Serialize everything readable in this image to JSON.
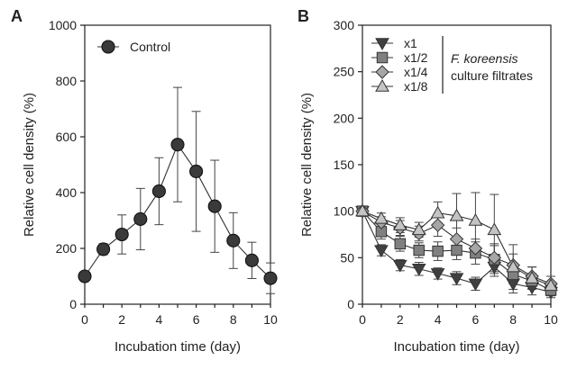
{
  "chart_data": [
    {
      "panel": "A",
      "type": "line",
      "xlabel": "Incubation time (day)",
      "ylabel": "Relative cell density (%)",
      "xlim": [
        0,
        10
      ],
      "ylim": [
        0,
        1000
      ],
      "xticks": [
        0,
        2,
        4,
        6,
        8,
        10
      ],
      "yticks": [
        0,
        200,
        400,
        600,
        800,
        1000
      ],
      "legend_position": "top-left",
      "series": [
        {
          "name": "Control",
          "marker": "circle",
          "color": "#3a3a3a",
          "x": [
            0,
            1,
            2,
            3,
            4,
            5,
            6,
            7,
            8,
            9,
            10
          ],
          "y": [
            100,
            197,
            250,
            305,
            405,
            572,
            476,
            351,
            228,
            157,
            93
          ],
          "error": [
            0,
            20,
            70,
            110,
            120,
            205,
            215,
            165,
            100,
            65,
            55
          ]
        }
      ]
    },
    {
      "panel": "B",
      "type": "line",
      "xlabel": "Incubation time (day)",
      "ylabel": "Relative cell density (%)",
      "xlim": [
        0,
        10
      ],
      "ylim": [
        0,
        300
      ],
      "xticks": [
        0,
        2,
        4,
        6,
        8,
        10
      ],
      "yticks": [
        0,
        50,
        100,
        150,
        200,
        250,
        300
      ],
      "legend_position": "top-left",
      "legend_annotation": [
        "F. koreensis",
        "culture filtrates"
      ],
      "series": [
        {
          "name": "x1",
          "marker": "triangle-down",
          "color": "#404040",
          "x": [
            0,
            1,
            2,
            3,
            4,
            5,
            6,
            7,
            8,
            9,
            10
          ],
          "y": [
            100,
            58,
            42,
            38,
            33,
            28,
            22,
            40,
            22,
            18,
            13
          ],
          "error": [
            0,
            6,
            6,
            7,
            6,
            7,
            7,
            10,
            10,
            8,
            6
          ]
        },
        {
          "name": "x1/2",
          "marker": "square",
          "color": "#808080",
          "x": [
            0,
            1,
            2,
            3,
            4,
            5,
            6,
            7,
            8,
            9,
            10
          ],
          "y": [
            100,
            78,
            65,
            58,
            57,
            58,
            55,
            48,
            32,
            25,
            15
          ],
          "error": [
            0,
            8,
            8,
            8,
            10,
            10,
            12,
            15,
            10,
            8,
            6
          ]
        },
        {
          "name": "x1/4",
          "marker": "diamond",
          "color": "#a6a6a6",
          "x": [
            0,
            1,
            2,
            3,
            4,
            5,
            6,
            7,
            8,
            9,
            10
          ],
          "y": [
            100,
            88,
            82,
            76,
            85,
            70,
            60,
            50,
            42,
            30,
            22
          ],
          "error": [
            0,
            6,
            8,
            8,
            12,
            12,
            10,
            15,
            12,
            10,
            8
          ]
        },
        {
          "name": "x1/8",
          "marker": "triangle-up",
          "color": "#c4c4c4",
          "x": [
            0,
            1,
            2,
            3,
            4,
            5,
            6,
            7,
            8,
            9,
            10
          ],
          "y": [
            100,
            92,
            85,
            80,
            98,
            95,
            90,
            80,
            40,
            28,
            20
          ],
          "error": [
            0,
            6,
            8,
            8,
            12,
            24,
            30,
            38,
            24,
            12,
            10
          ]
        }
      ]
    }
  ]
}
